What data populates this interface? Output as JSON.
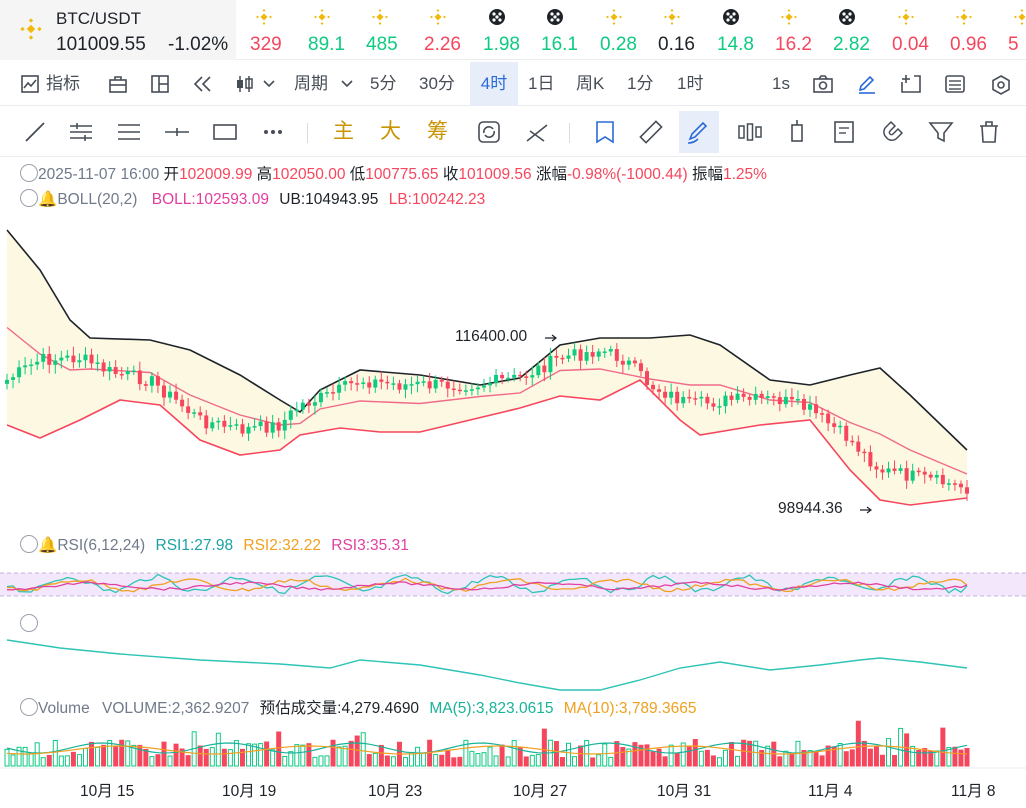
{
  "symbol": {
    "name": "BTC/USDT",
    "price": "101009.55",
    "change": "-1.02%"
  },
  "tickers": [
    {
      "icon": "bnb-icon",
      "value": "329",
      "dir": "dn"
    },
    {
      "icon": "bnb-icon",
      "value": "89.1",
      "dir": "up"
    },
    {
      "icon": "bnb-icon",
      "value": "485",
      "dir": "up"
    },
    {
      "icon": "bnb-icon",
      "value": "2.26",
      "dir": "dn"
    },
    {
      "icon": "dark-coin-icon",
      "value": "1.98",
      "dir": "up"
    },
    {
      "icon": "dark-coin-icon",
      "value": "16.1",
      "dir": "up"
    },
    {
      "icon": "bnb-icon",
      "value": "0.28",
      "dir": "up"
    },
    {
      "icon": "bnb-icon",
      "value": "0.16",
      "dir": "nt"
    },
    {
      "icon": "dark-coin-icon",
      "value": "14.8",
      "dir": "up"
    },
    {
      "icon": "bnb-icon",
      "value": "16.2",
      "dir": "dn"
    },
    {
      "icon": "dark-coin-icon",
      "value": "2.82",
      "dir": "up"
    },
    {
      "icon": "bnb-icon",
      "value": "0.04",
      "dir": "dn"
    },
    {
      "icon": "bnb-icon",
      "value": "0.96",
      "dir": "dn"
    },
    {
      "icon": "bnb-icon",
      "value": "5",
      "dir": "dn"
    }
  ],
  "toolbar1": {
    "indicator": "指标",
    "period": "周期",
    "intervals": [
      "5分",
      "30分",
      "4时",
      "1日",
      "周K",
      "1分",
      "1时"
    ],
    "active_interval": "4时",
    "speed": "1s"
  },
  "toolbar2": {
    "main": "主",
    "big": "大",
    "chips": "筹"
  },
  "ohlc": {
    "date": "2025-11-07 16:00",
    "open_label": "开",
    "open": "102009.99",
    "high_label": "高",
    "high": "102050.00",
    "low_label": "低",
    "low": "100775.65",
    "close_label": "收",
    "close": "101009.56",
    "chg_label": "涨幅",
    "chg": "-0.98%(-1000.44)",
    "amp_label": "振幅",
    "amp": "1.25%"
  },
  "boll": {
    "label": "BOLL(20,2)",
    "boll": "BOLL:102593.09",
    "ub": "UB:104943.95",
    "lb": "LB:100242.23"
  },
  "annotations": {
    "high": "116400.00",
    "low": "98944.36"
  },
  "rsi": {
    "label": "RSI(6,12,24)",
    "rsi1": "RSI1:27.98",
    "rsi2": "RSI2:32.22",
    "rsi3": "RSI3:35.31"
  },
  "volume": {
    "label": "Volume",
    "vol": "VOLUME:2,362.9207",
    "est": "预估成交量:4,279.4690",
    "ma5": "MA(5):3,823.0615",
    "ma10": "MA(10):3,789.3665"
  },
  "xaxis": [
    "10月 15",
    "10月 19",
    "10月 23",
    "10月 27",
    "10月 31",
    "11月 4",
    "11月 8"
  ],
  "colors": {
    "up": "#0ecb81",
    "down": "#f6465d",
    "accent": "#f0b90b",
    "active": "#2b6bd9"
  },
  "chart_data": {
    "type": "candlestick",
    "annotations": [
      {
        "label": "116400.00"
      },
      {
        "label": "98944.36"
      }
    ],
    "x": [
      "10月 15",
      "10月 19",
      "10月 23",
      "10月 27",
      "10月 31",
      "11月 4",
      "11月 8"
    ]
  }
}
